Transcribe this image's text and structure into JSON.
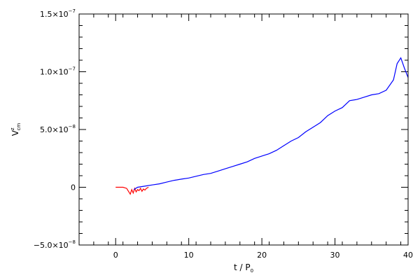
{
  "chart_data": {
    "type": "line",
    "xlabel": {
      "base": "t / P",
      "sub": "0"
    },
    "ylabel": {
      "base": "V",
      "sup": "z",
      "sub": "cm"
    },
    "xlim": [
      -5,
      40
    ],
    "ylim": [
      -5e-08,
      1.5e-07
    ],
    "x_ticks": [
      {
        "value": 0,
        "label": "0"
      },
      {
        "value": 10,
        "label": "10"
      },
      {
        "value": 20,
        "label": "20"
      },
      {
        "value": 30,
        "label": "30"
      },
      {
        "value": 40,
        "label": "40"
      }
    ],
    "x_minor_step": 2,
    "y_ticks": [
      {
        "value": -5e-08,
        "mantissa": "−5.0×10",
        "exp": "−8"
      },
      {
        "value": 0,
        "mantissa": "0",
        "exp": ""
      },
      {
        "value": 5e-08,
        "mantissa": "5.0×10",
        "exp": "−8"
      },
      {
        "value": 1e-07,
        "mantissa": "1.0×10",
        "exp": "−7"
      },
      {
        "value": 1.5e-07,
        "mantissa": "1.5×10",
        "exp": "−7"
      }
    ],
    "y_minor_step": 1e-08,
    "series": [
      {
        "color": "#ff0000",
        "x": [
          0,
          0.5,
          1.0,
          1.5,
          1.8,
          2.0,
          2.2,
          2.4,
          2.6,
          2.8,
          3.0,
          3.2,
          3.4,
          3.6,
          3.8,
          4.0,
          4.2,
          4.5
        ],
        "y": [
          0,
          0,
          0,
          -1e-09,
          -4e-09,
          -6e-09,
          -2e-09,
          -5e-09,
          -1e-09,
          -4e-09,
          -2e-09,
          -3e-09,
          -1e-09,
          -3.5e-09,
          -1.5e-09,
          -2.5e-09,
          -1e-09,
          0
        ]
      },
      {
        "color": "#0000ff",
        "x": [
          2.5,
          3,
          4,
          5,
          6,
          7,
          8,
          9,
          10,
          11,
          12,
          13,
          14,
          15,
          16,
          17,
          18,
          19,
          20,
          21,
          22,
          23,
          24,
          25,
          26,
          27,
          28,
          29,
          30,
          31,
          32,
          33,
          34,
          35,
          36,
          37,
          38,
          38.5,
          39,
          39.5,
          40
        ],
        "y": [
          -2e-09,
          0,
          1e-09,
          2e-09,
          3e-09,
          4.5e-09,
          6e-09,
          7e-09,
          8e-09,
          9.5e-09,
          1.1e-08,
          1.2e-08,
          1.4e-08,
          1.6e-08,
          1.8e-08,
          2e-08,
          2.2e-08,
          2.5e-08,
          2.7e-08,
          2.9e-08,
          3.2e-08,
          3.6e-08,
          4e-08,
          4.3e-08,
          4.8e-08,
          5.2e-08,
          5.6e-08,
          6.2e-08,
          6.6e-08,
          6.9e-08,
          7.5e-08,
          7.6e-08,
          7.8e-08,
          8e-08,
          8.1e-08,
          8.4e-08,
          9.3e-08,
          1.07e-07,
          1.12e-07,
          1.03e-07,
          9.5e-08
        ]
      }
    ]
  }
}
